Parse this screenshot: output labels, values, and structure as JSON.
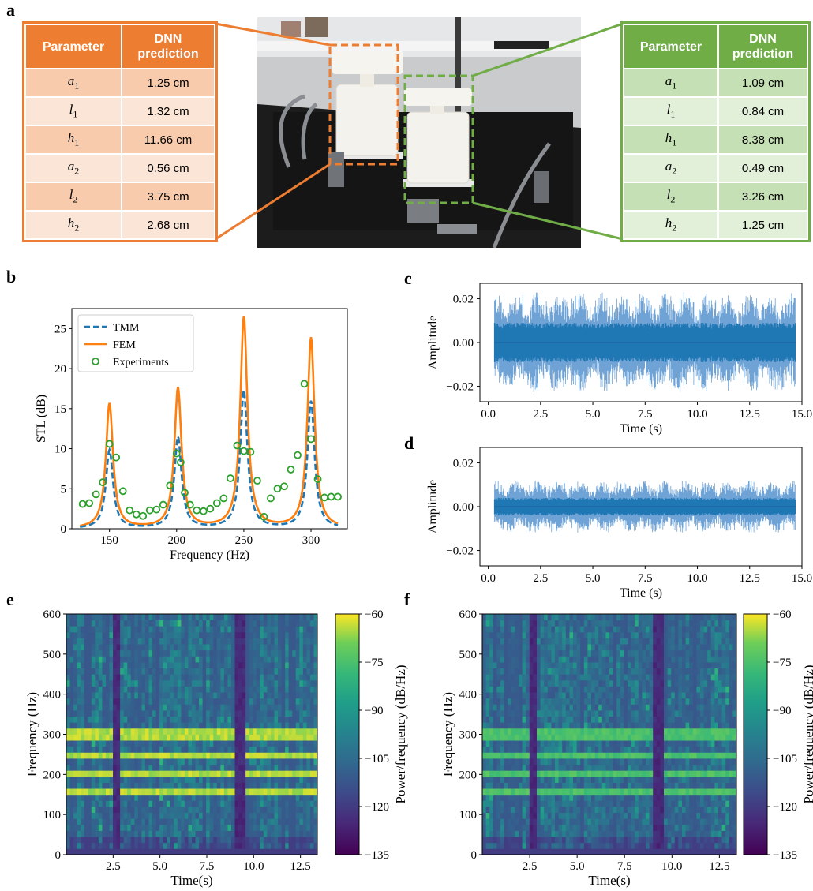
{
  "panel_labels": {
    "a": "a",
    "b": "b",
    "c": "c",
    "d": "d",
    "e": "e",
    "f": "f"
  },
  "tables": [
    {
      "header": [
        "Parameter",
        "DNN prediction"
      ],
      "color": "#ED7D31",
      "rows": [
        {
          "sym": "a",
          "sub": "1",
          "value": "1.25 cm"
        },
        {
          "sym": "l",
          "sub": "1",
          "value": "1.32 cm"
        },
        {
          "sym": "h",
          "sub": "1",
          "value": "11.66 cm"
        },
        {
          "sym": "a",
          "sub": "2",
          "value": "0.56 cm"
        },
        {
          "sym": "l",
          "sub": "2",
          "value": "3.75 cm"
        },
        {
          "sym": "h",
          "sub": "2",
          "value": "2.68 cm"
        }
      ]
    },
    {
      "header": [
        "Parameter",
        "DNN prediction"
      ],
      "color": "#70AD47",
      "rows": [
        {
          "sym": "a",
          "sub": "1",
          "value": "1.09 cm"
        },
        {
          "sym": "l",
          "sub": "1",
          "value": "0.84 cm"
        },
        {
          "sym": "h",
          "sub": "1",
          "value": "8.38 cm"
        },
        {
          "sym": "a",
          "sub": "2",
          "value": "0.49 cm"
        },
        {
          "sym": "l",
          "sub": "2",
          "value": "3.26 cm"
        },
        {
          "sym": "h",
          "sub": "2",
          "value": "1.25 cm"
        }
      ]
    }
  ],
  "chart_data": [
    {
      "panel": "b",
      "type": "line",
      "xlabel": "Frequency (Hz)",
      "ylabel": "STL (dB)",
      "xlim": [
        122,
        327
      ],
      "ylim": [
        0,
        27.5
      ],
      "xticks": [
        150,
        200,
        250,
        300
      ],
      "yticks": [
        0,
        5,
        10,
        15,
        20,
        25
      ],
      "legend_position": "top-left",
      "series": [
        {
          "name": "TMM",
          "style": "dashed",
          "color": "#1f77b4",
          "peaks": [
            {
              "f": 150,
              "h": 9.8
            },
            {
              "f": 201,
              "h": 11.4
            },
            {
              "f": 250,
              "h": 17.2
            },
            {
              "f": 300,
              "h": 15.9
            }
          ]
        },
        {
          "name": "FEM",
          "style": "solid",
          "color": "#ff7f0e",
          "peaks": [
            {
              "f": 150,
              "h": 15.6
            },
            {
              "f": 201,
              "h": 17.5
            },
            {
              "f": 250,
              "h": 26.4
            },
            {
              "f": 300,
              "h": 23.8
            }
          ]
        },
        {
          "name": "Experiments",
          "style": "markers",
          "color": "#2ca02c",
          "x": [
            130,
            135,
            140,
            145,
            150,
            155,
            160,
            165,
            170,
            175,
            180,
            185,
            190,
            195,
            200,
            203,
            206,
            210,
            215,
            220,
            225,
            230,
            235,
            240,
            245,
            250,
            255,
            260,
            265,
            270,
            275,
            280,
            285,
            290,
            295,
            300,
            305,
            310,
            315,
            320
          ],
          "y": [
            3.1,
            3.2,
            4.3,
            5.8,
            10.6,
            8.9,
            4.7,
            2.3,
            1.8,
            1.6,
            2.3,
            2.4,
            3.0,
            5.4,
            9.4,
            8.3,
            4.5,
            3.0,
            2.3,
            2.2,
            2.5,
            3.2,
            3.8,
            6.3,
            10.4,
            9.7,
            9.6,
            6.0,
            1.5,
            3.8,
            5.0,
            5.3,
            7.4,
            9.2,
            18.1,
            11.2,
            6.2,
            3.9,
            4.0,
            4.0
          ]
        }
      ]
    },
    {
      "panel": "c",
      "type": "area",
      "xlabel": "Time (s)",
      "ylabel": "Amplitude",
      "xlim": [
        -0.4,
        15.0
      ],
      "ylim": [
        -0.027,
        0.027
      ],
      "xticks": [
        0.0,
        2.5,
        5.0,
        7.5,
        10.0,
        12.5,
        15.0
      ],
      "yticks": [
        -0.02,
        0.0,
        0.02
      ],
      "signal": {
        "start": 0.3,
        "end": 14.7,
        "outer_amplitude": 0.023,
        "inner_amplitude": 0.009,
        "color": "#1f77b4"
      }
    },
    {
      "panel": "d",
      "type": "area",
      "xlabel": "Time (s)",
      "ylabel": "Amplitude",
      "xlim": [
        -0.4,
        15.0
      ],
      "ylim": [
        -0.027,
        0.027
      ],
      "xticks": [
        0.0,
        2.5,
        5.0,
        7.5,
        10.0,
        12.5,
        15.0
      ],
      "yticks": [
        -0.02,
        0.0,
        0.02
      ],
      "signal": {
        "start": 0.3,
        "end": 14.7,
        "outer_amplitude": 0.012,
        "inner_amplitude": 0.004,
        "color": "#1f77b4"
      }
    },
    {
      "panel": "e",
      "type": "heatmap",
      "xlabel": "Time(s)",
      "ylabel": "Frequency (Hz)",
      "colorbar_label": "Power/frequency (dB/Hz)",
      "xlim": [
        0,
        13.4
      ],
      "ylim": [
        0,
        600
      ],
      "xticks": [
        2.5,
        5.0,
        7.5,
        10.0,
        12.5
      ],
      "yticks": [
        0,
        100,
        200,
        300,
        400,
        500,
        600
      ],
      "cticks": [
        -60,
        -75,
        -90,
        -105,
        -120,
        -135
      ],
      "clim": [
        -135,
        -60
      ],
      "bands_hz": [
        155,
        205,
        250,
        300
      ],
      "band_level": -62,
      "quiet_times": [
        2.7,
        9.3
      ]
    },
    {
      "panel": "f",
      "type": "heatmap",
      "xlabel": "Time(s)",
      "ylabel": "Frequency (Hz)",
      "colorbar_label": "Power/frequency (dB/Hz)",
      "xlim": [
        0,
        13.4
      ],
      "ylim": [
        0,
        600
      ],
      "xticks": [
        2.5,
        5.0,
        7.5,
        10.0,
        12.5
      ],
      "yticks": [
        0,
        100,
        200,
        300,
        400,
        500,
        600
      ],
      "cticks": [
        -60,
        -75,
        -90,
        -105,
        -120,
        -135
      ],
      "clim": [
        -135,
        -60
      ],
      "bands_hz": [
        155,
        205,
        250,
        300
      ],
      "band_level": -72,
      "quiet_times": [
        2.7,
        9.3
      ]
    }
  ]
}
